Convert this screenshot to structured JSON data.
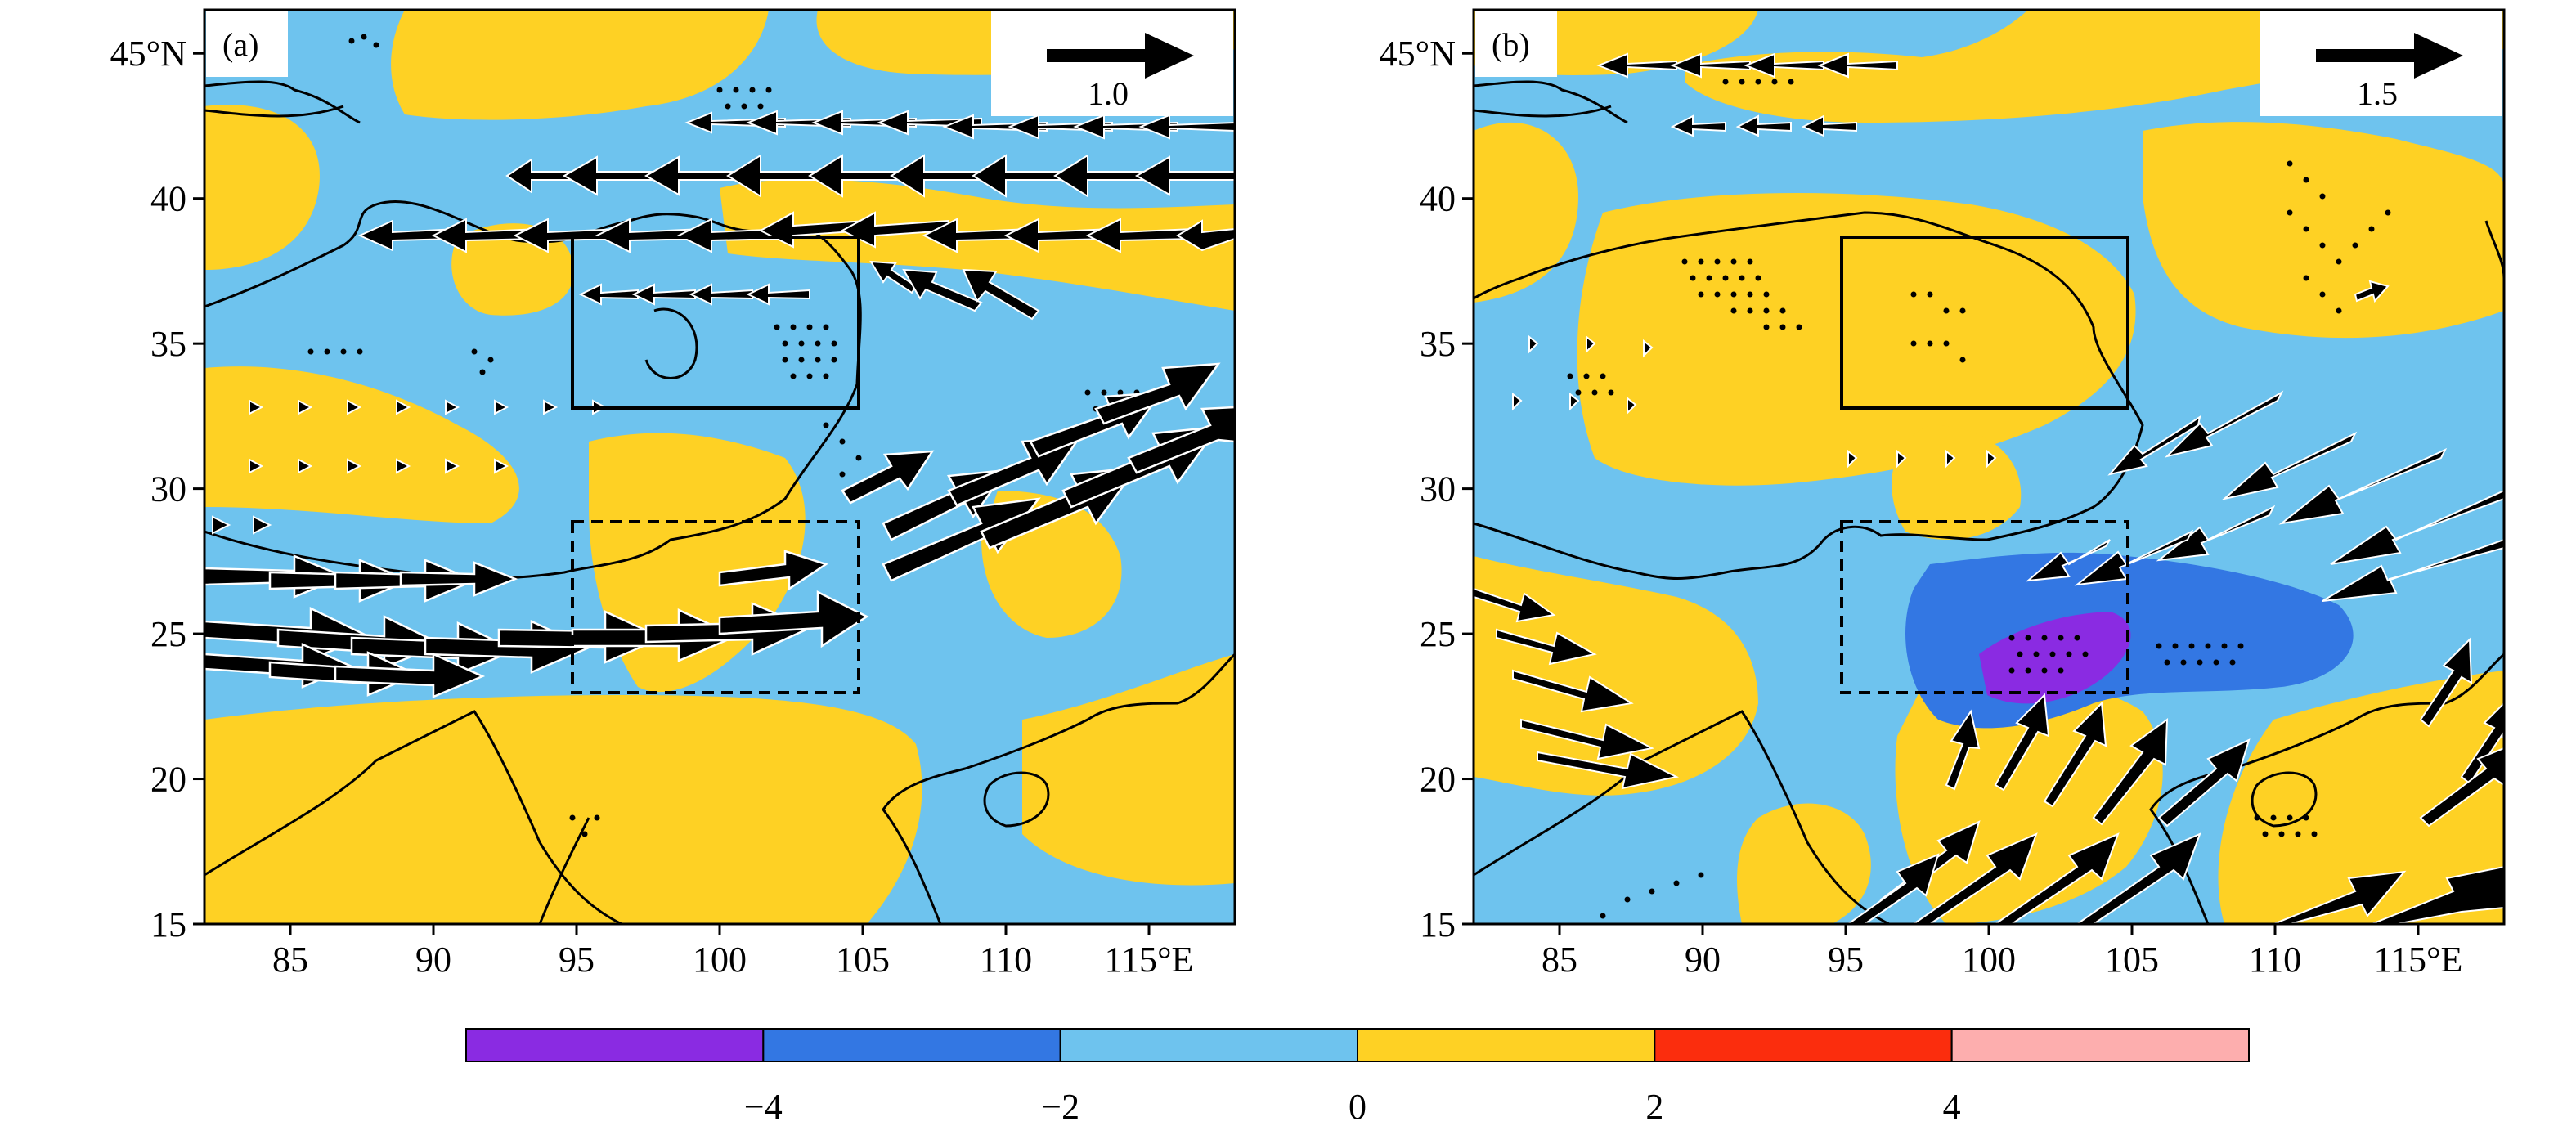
{
  "colors": {
    "ocean_light_blue": "#6ec3ee",
    "land_yellow": "#fed124",
    "blue_mid": "#3377e3",
    "purple": "#8a2be2",
    "red": "#fb2d0d",
    "pink": "#fdaeae",
    "arrow_fill": "#000000",
    "arrow_edge": "#ffffff"
  },
  "icons": {
    "wind_vector": "arrow-icon",
    "significance": "stipple-dots-icon"
  },
  "map_extent": {
    "lon": [
      82,
      118
    ],
    "lat": [
      15,
      46.5
    ]
  },
  "panels": [
    {
      "label": "(a)",
      "reference_vector_label": "1.0",
      "ref_magnitude": 1.0
    },
    {
      "label": "(b)",
      "reference_vector_label": "1.5",
      "ref_magnitude": 1.5
    }
  ],
  "axes": {
    "lat_ticks": [
      "45°N",
      "40",
      "35",
      "30",
      "25",
      "20",
      "15"
    ],
    "lat_values": [
      45,
      40,
      35,
      30,
      25,
      20,
      15
    ],
    "lon_ticks": [
      "85",
      "90",
      "95",
      "100",
      "105",
      "110",
      "115°E"
    ],
    "lon_values": [
      85,
      90,
      95,
      100,
      105,
      110,
      115
    ]
  },
  "boxes": {
    "solid": {
      "lon": [
        95,
        105
      ],
      "lat": [
        33,
        39
      ]
    },
    "dashed": {
      "lon": [
        95,
        105
      ],
      "lat": [
        23,
        29
      ]
    }
  },
  "colorbar": {
    "tick_labels": [
      "−4",
      "−2",
      "0",
      "2",
      "4"
    ],
    "bins": [
      {
        "from": -6,
        "to": -4,
        "color": "#8a2be2"
      },
      {
        "from": -4,
        "to": -2,
        "color": "#3377e3"
      },
      {
        "from": -2,
        "to": 0,
        "color": "#6ec3ee"
      },
      {
        "from": 0,
        "to": 2,
        "color": "#fed124"
      },
      {
        "from": 2,
        "to": 4,
        "color": "#fb2d0d"
      },
      {
        "from": 4,
        "to": 6,
        "color": "#fdaeae"
      }
    ]
  }
}
